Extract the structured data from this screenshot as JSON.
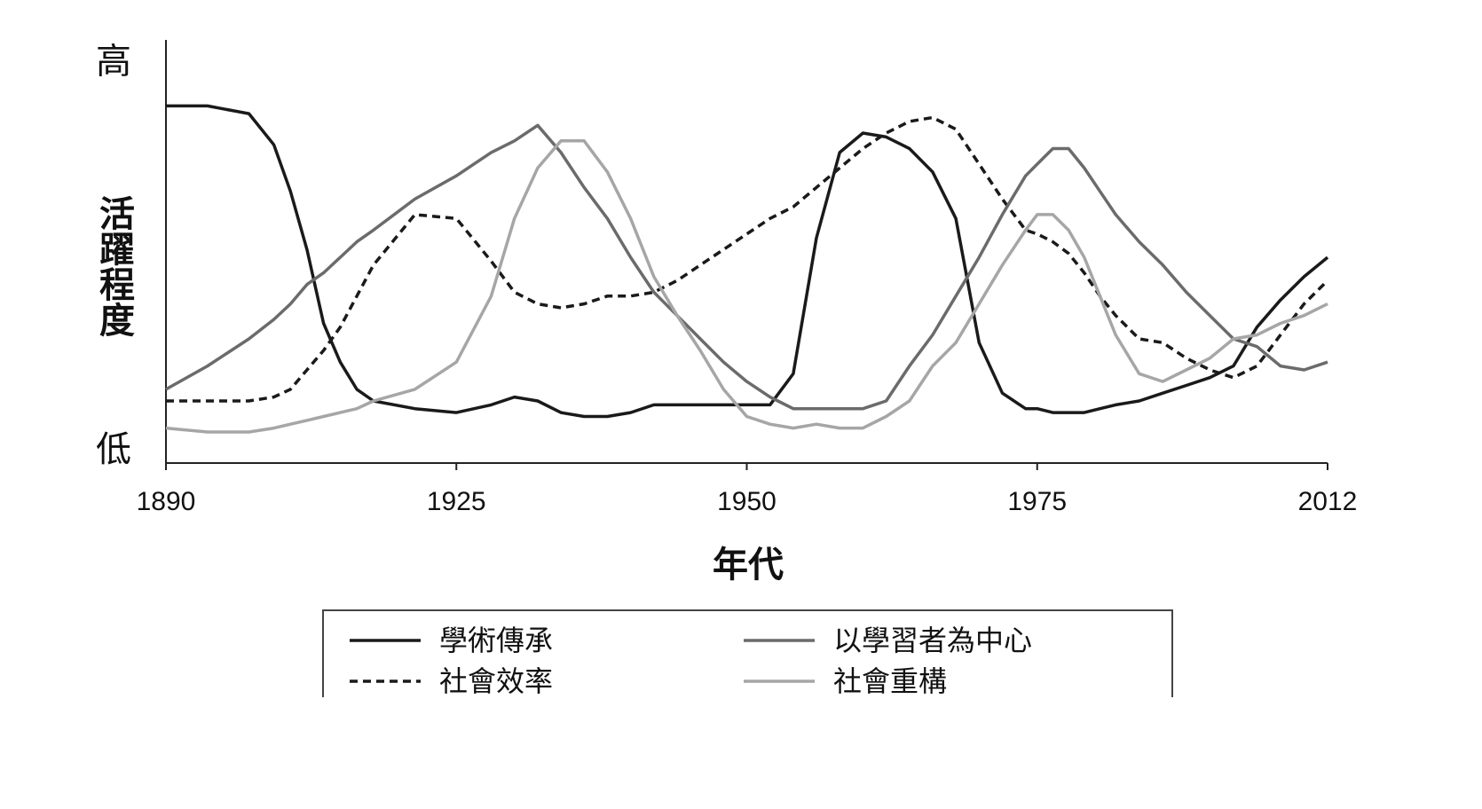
{
  "chart_data": {
    "type": "line",
    "x_label": "年代",
    "y_label": "活躍程度",
    "x": [
      1890,
      1895,
      1900,
      1903,
      1905,
      1907,
      1909,
      1911,
      1913,
      1915,
      1920,
      1925,
      1928,
      1930,
      1932,
      1934,
      1936,
      1938,
      1940,
      1942,
      1944,
      1946,
      1948,
      1950,
      1952,
      1954,
      1956,
      1958,
      1960,
      1962,
      1964,
      1966,
      1968,
      1970,
      1972,
      1974,
      1975,
      1977,
      1979,
      1981,
      1983,
      1985,
      1988,
      1991,
      1994,
      1997,
      2000,
      2003,
      2006,
      2009,
      2012
    ],
    "xlim": [
      1890,
      2012
    ],
    "xticks": [
      1890,
      1925,
      1950,
      1975,
      2012
    ],
    "ylim": [
      -0.3,
      10.6
    ],
    "yticks": [
      {
        "value": 0,
        "label": "低"
      },
      {
        "value": 10,
        "label": "高"
      }
    ],
    "series": [
      {
        "name": "學術傳承",
        "color": "#1a1a1a",
        "line_style": "solid",
        "values": [
          8.9,
          8.9,
          8.7,
          7.9,
          6.7,
          5.2,
          3.3,
          2.3,
          1.6,
          1.3,
          1.1,
          1.0,
          1.2,
          1.4,
          1.3,
          1.0,
          0.9,
          0.9,
          1.0,
          1.2,
          1.2,
          1.2,
          1.2,
          1.2,
          1.2,
          2.0,
          5.5,
          7.7,
          8.2,
          8.1,
          7.8,
          7.2,
          6.0,
          2.8,
          1.5,
          1.1,
          1.1,
          1.0,
          1.0,
          1.0,
          1.1,
          1.2,
          1.3,
          1.5,
          1.7,
          1.9,
          2.2,
          3.2,
          3.9,
          4.5,
          5.0
        ]
      },
      {
        "name": "社會效率",
        "color": "#1a1a1a",
        "line_style": "dashed",
        "values": [
          1.3,
          1.3,
          1.3,
          1.4,
          1.6,
          2.1,
          2.6,
          3.2,
          4.0,
          4.8,
          6.1,
          6.0,
          4.9,
          4.1,
          3.8,
          3.7,
          3.8,
          4.0,
          4.0,
          4.1,
          4.4,
          4.8,
          5.2,
          5.6,
          6.0,
          6.3,
          6.8,
          7.3,
          7.8,
          8.2,
          8.5,
          8.6,
          8.3,
          7.4,
          6.5,
          5.7,
          5.6,
          5.4,
          5.1,
          4.6,
          4.0,
          3.5,
          2.9,
          2.8,
          2.4,
          2.1,
          1.9,
          2.2,
          3.0,
          3.8,
          4.4
        ]
      },
      {
        "name": "以學習者為中心",
        "color": "#6b6b6b",
        "line_style": "solid",
        "values": [
          1.6,
          2.2,
          2.9,
          3.4,
          3.8,
          4.3,
          4.6,
          5.0,
          5.4,
          5.7,
          6.5,
          7.1,
          7.7,
          8.0,
          8.4,
          7.7,
          6.8,
          6.0,
          5.0,
          4.1,
          3.5,
          2.9,
          2.3,
          1.8,
          1.4,
          1.1,
          1.1,
          1.1,
          1.1,
          1.3,
          2.2,
          3.0,
          4.0,
          5.0,
          6.1,
          7.1,
          7.4,
          7.8,
          7.8,
          7.3,
          6.7,
          6.1,
          5.4,
          4.8,
          4.1,
          3.5,
          2.9,
          2.7,
          2.2,
          2.1,
          2.3
        ]
      },
      {
        "name": "社會重構",
        "color": "#a6a6a6",
        "line_style": "solid",
        "values": [
          0.6,
          0.5,
          0.5,
          0.6,
          0.7,
          0.8,
          0.9,
          1.0,
          1.1,
          1.3,
          1.6,
          2.3,
          4.0,
          6.0,
          7.3,
          8.0,
          8.0,
          7.2,
          6.0,
          4.5,
          3.5,
          2.6,
          1.6,
          0.9,
          0.7,
          0.6,
          0.7,
          0.6,
          0.6,
          0.9,
          1.3,
          2.2,
          2.8,
          3.8,
          4.8,
          5.7,
          6.1,
          6.1,
          5.7,
          5.0,
          4.0,
          3.0,
          2.0,
          1.8,
          2.1,
          2.4,
          2.9,
          3.0,
          3.3,
          3.5,
          3.8
        ]
      }
    ]
  }
}
